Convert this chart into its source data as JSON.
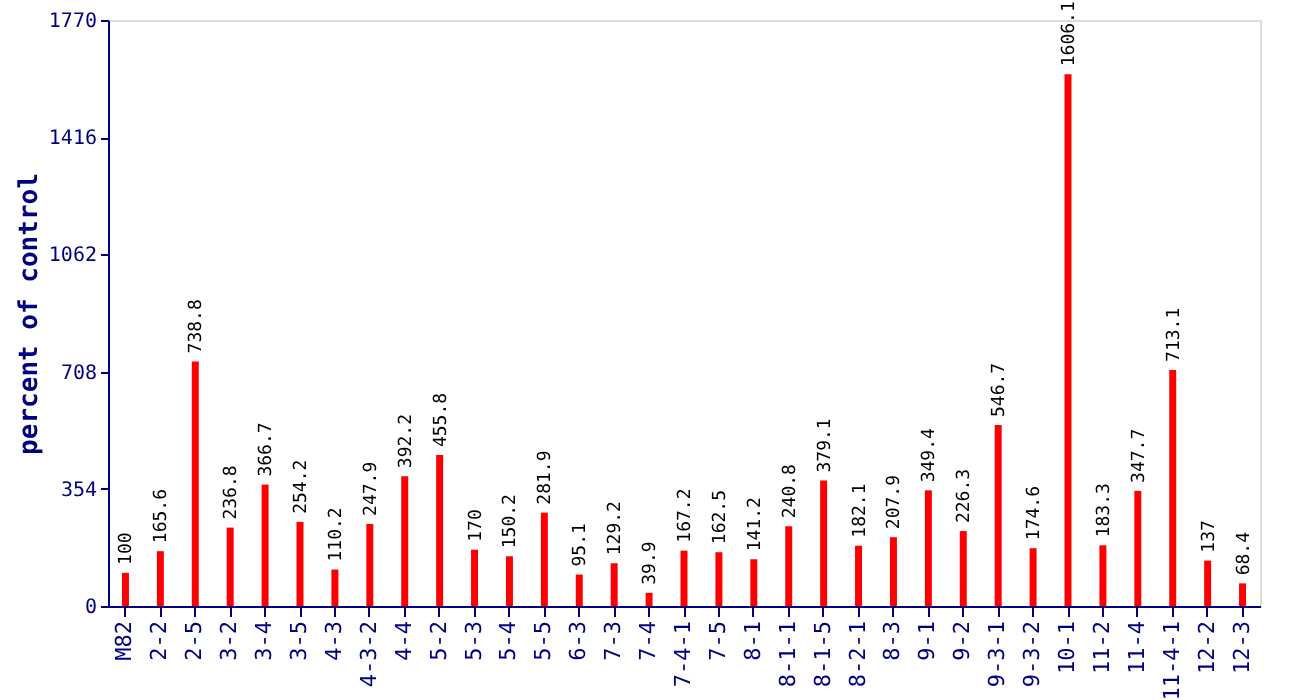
{
  "chart_data": {
    "type": "bar",
    "ylabel": "percent of control",
    "categories": [
      "M82",
      "2-2",
      "2-5",
      "3-2",
      "3-4",
      "3-5",
      "4-3",
      "4-3-2",
      "4-4",
      "5-2",
      "5-3",
      "5-4",
      "5-5",
      "6-3",
      "7-3",
      "7-4",
      "7-4-1",
      "7-5",
      "8-1",
      "8-1-1",
      "8-1-5",
      "8-2-1",
      "8-3",
      "9-1",
      "9-2",
      "9-3-1",
      "9-3-2",
      "10-1",
      "11-2",
      "11-4",
      "11-4-1",
      "12-2",
      "12-3"
    ],
    "values": [
      100,
      165.6,
      738.8,
      236.8,
      366.7,
      254.2,
      110.2,
      247.9,
      392.2,
      455.8,
      170,
      150.2,
      281.9,
      95.1,
      129.2,
      39.9,
      167.2,
      162.5,
      141.2,
      240.8,
      379.1,
      182.1,
      207.9,
      349.4,
      226.3,
      546.7,
      174.6,
      1606.1,
      183.3,
      347.7,
      713.1,
      137,
      68.4
    ],
    "color": "#ff0000",
    "ylim": [
      0,
      1770
    ],
    "yticks": [
      0,
      354,
      708,
      1062,
      1416,
      1770
    ],
    "data_labels": true,
    "grid": false
  }
}
